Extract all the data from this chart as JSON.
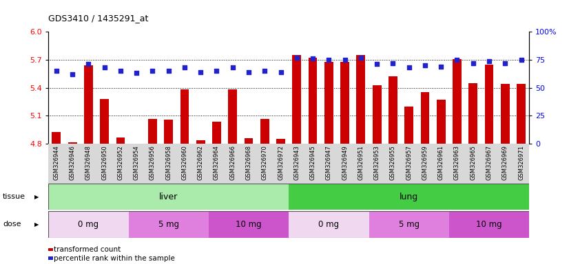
{
  "title": "GDS3410 / 1435291_at",
  "samples": [
    "GSM326944",
    "GSM326946",
    "GSM326948",
    "GSM326950",
    "GSM326952",
    "GSM326954",
    "GSM326956",
    "GSM326958",
    "GSM326960",
    "GSM326962",
    "GSM326964",
    "GSM326966",
    "GSM326968",
    "GSM326970",
    "GSM326972",
    "GSM326943",
    "GSM326945",
    "GSM326947",
    "GSM326949",
    "GSM326951",
    "GSM326953",
    "GSM326955",
    "GSM326957",
    "GSM326959",
    "GSM326961",
    "GSM326963",
    "GSM326965",
    "GSM326967",
    "GSM326969",
    "GSM326971"
  ],
  "transformed_count": [
    4.93,
    4.82,
    5.64,
    5.28,
    4.87,
    4.77,
    5.07,
    5.06,
    5.38,
    4.84,
    5.04,
    5.38,
    4.86,
    5.07,
    4.85,
    5.75,
    5.72,
    5.68,
    5.68,
    5.75,
    5.43,
    5.52,
    5.2,
    5.35,
    5.27,
    5.71,
    5.45,
    5.65,
    5.44,
    5.44
  ],
  "percentile_rank": [
    65,
    62,
    71,
    68,
    65,
    63,
    65,
    65,
    68,
    64,
    65,
    68,
    64,
    65,
    64,
    77,
    76,
    75,
    75,
    77,
    71,
    72,
    68,
    70,
    69,
    75,
    72,
    74,
    72,
    75
  ],
  "ylim_left": [
    4.8,
    6.0
  ],
  "ylim_right": [
    0,
    100
  ],
  "yticks_left": [
    4.8,
    5.1,
    5.4,
    5.7,
    6.0
  ],
  "yticks_right": [
    0,
    25,
    50,
    75,
    100
  ],
  "hlines": [
    5.1,
    5.4,
    5.7
  ],
  "bar_color": "#cc0000",
  "dot_color": "#2222cc",
  "bar_width": 0.55,
  "tissue_groups": [
    {
      "label": "liver",
      "start": 0,
      "end": 15,
      "color": "#aaeaaa"
    },
    {
      "label": "lung",
      "start": 15,
      "end": 30,
      "color": "#44cc44"
    }
  ],
  "dose_groups": [
    {
      "label": "0 mg",
      "start": 0,
      "end": 5,
      "color": "#f0d8f0"
    },
    {
      "label": "5 mg",
      "start": 5,
      "end": 10,
      "color": "#df80df"
    },
    {
      "label": "10 mg",
      "start": 10,
      "end": 15,
      "color": "#cc55cc"
    },
    {
      "label": "0 mg",
      "start": 15,
      "end": 20,
      "color": "#f0d8f0"
    },
    {
      "label": "5 mg",
      "start": 20,
      "end": 25,
      "color": "#df80df"
    },
    {
      "label": "10 mg",
      "start": 25,
      "end": 30,
      "color": "#cc55cc"
    }
  ],
  "legend_bar_label": "transformed count",
  "legend_dot_label": "percentile rank within the sample",
  "tissue_label": "tissue",
  "dose_label": "dose",
  "xticklabel_bg": "#d8d8d8",
  "plot_bg_color": "#ffffff"
}
